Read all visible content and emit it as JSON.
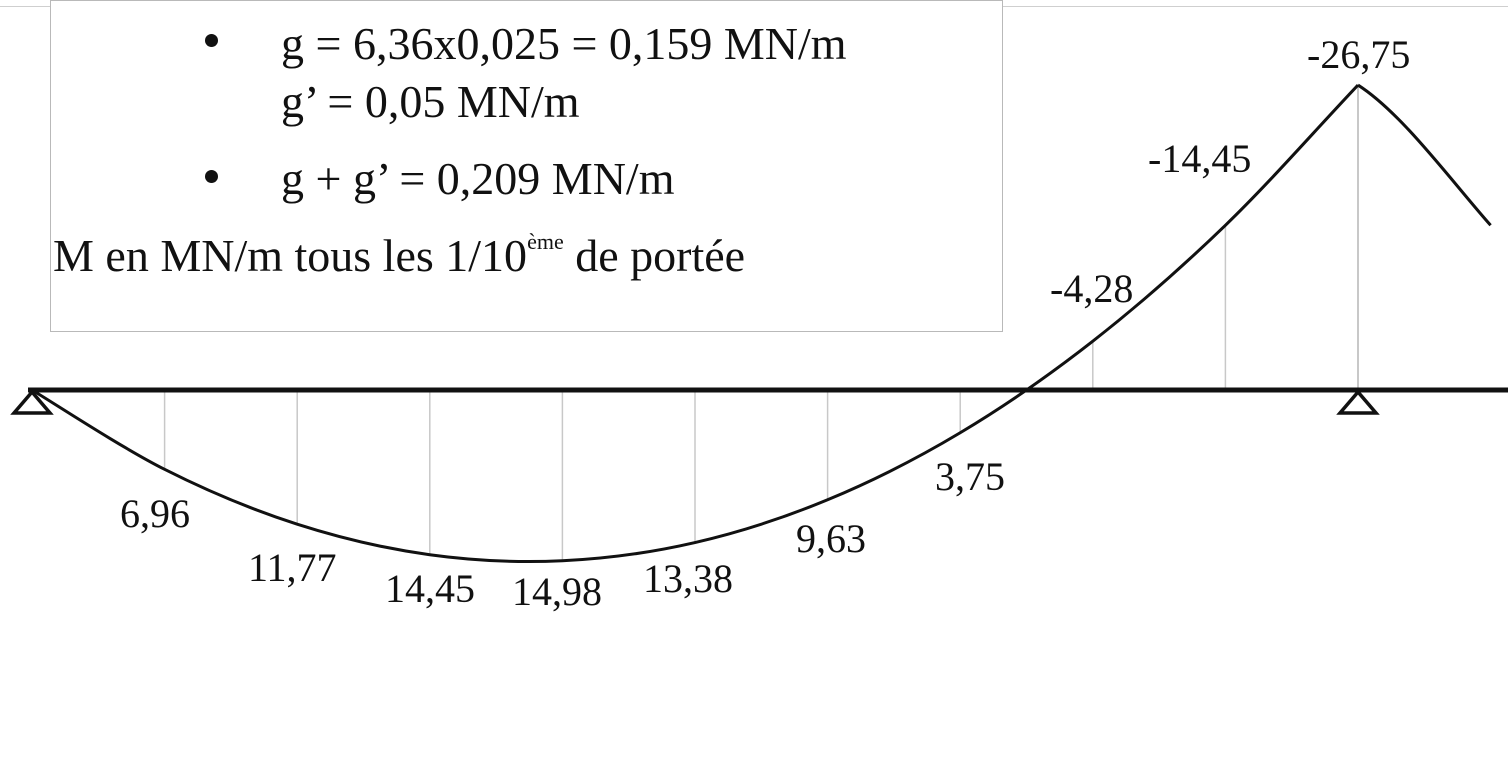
{
  "legend": {
    "line1": "g = 6,36x0,025 = 0,159 MN/m",
    "line2": "g’ = 0,05 MN/m",
    "line3": "g + g’ = 0,209 MN/m",
    "line4_main": "M en MN/m tous les 1/10",
    "line4_sup": "ème",
    "line4_tail": " de portée"
  },
  "chart_data": {
    "type": "line",
    "title": "",
    "xlabel": "",
    "ylabel": "",
    "x_step": "1/10 de portée",
    "span1": {
      "x": [
        0,
        1,
        2,
        3,
        4,
        5,
        6,
        7,
        8,
        9,
        10
      ],
      "moment": [
        0,
        6.96,
        11.77,
        14.45,
        14.98,
        13.38,
        9.63,
        3.75,
        -4.28,
        -14.45,
        -26.75
      ]
    },
    "labels": [
      "6,96",
      "11,77",
      "14,45",
      "14,98",
      "13,38",
      "9,63",
      "3,75",
      "-4,28",
      "-14,45",
      "-26,75"
    ],
    "supports": [
      "pinned",
      "pinned"
    ],
    "colors": {
      "curve": "#111111",
      "beam": "#111111",
      "ordinates": "#c8c8c8"
    }
  }
}
